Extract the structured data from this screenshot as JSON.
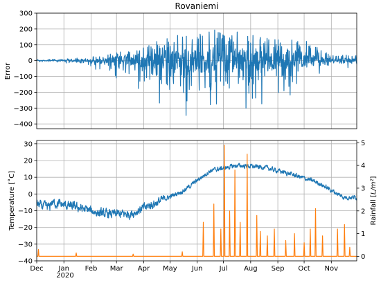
{
  "chart_data": [
    {
      "type": "line",
      "title": "Rovaniemi",
      "ylabel": "Error",
      "ylim": [
        -430,
        300
      ],
      "yticks": [
        "300",
        "200",
        "100",
        "0",
        "−100",
        "−200",
        "−300",
        "−400"
      ],
      "ytick_values": [
        300,
        200,
        100,
        0,
        -100,
        -200,
        -300,
        -400
      ],
      "grid": true,
      "series": [
        {
          "color": "#1f77b4",
          "envelope": [
            {
              "month": "Dec",
              "max": 8,
              "min": -8
            },
            {
              "month": "Jan",
              "max": 12,
              "min": -12
            },
            {
              "month": "Feb",
              "max": 30,
              "min": -40
            },
            {
              "month": "Mar",
              "max": 70,
              "min": -120
            },
            {
              "month": "Apr",
              "max": 110,
              "min": -270
            },
            {
              "month": "May",
              "max": 200,
              "min": -320
            },
            {
              "month": "Jun",
              "max": 225,
              "min": -410
            },
            {
              "month": "Jul",
              "max": 265,
              "min": -360
            },
            {
              "month": "Aug",
              "max": 210,
              "min": -310
            },
            {
              "month": "Sep",
              "max": 175,
              "min": -250
            },
            {
              "month": "Oct",
              "max": 170,
              "min": -190
            },
            {
              "month": "Nov",
              "max": 45,
              "min": -45
            }
          ]
        }
      ]
    },
    {
      "type": "line",
      "ylabel": "Temperature [˚C]",
      "y2label": "Rainfall [L/m²]",
      "ylim": [
        -40,
        32
      ],
      "y2lim": [
        -0.2,
        5.1
      ],
      "yticks": [
        "30",
        "20",
        "10",
        "0",
        "−10",
        "−20",
        "−30",
        "−40"
      ],
      "ytick_values": [
        30,
        20,
        10,
        0,
        -10,
        -20,
        -30,
        -40
      ],
      "y2ticks": [
        "5",
        "4",
        "3",
        "2",
        "1",
        "0"
      ],
      "y2tick_values": [
        5,
        4,
        3,
        2,
        1,
        0
      ],
      "xticks": [
        "Dec",
        "Jan",
        "Feb",
        "Mar",
        "Apr",
        "May",
        "Jun",
        "Jul",
        "Aug",
        "Sep",
        "Oct",
        "Nov"
      ],
      "xsublabel": "2020",
      "grid": true,
      "series": [
        {
          "axis": "left",
          "color": "#1f77b4",
          "monthly_mean": [
            {
              "month": "Dec",
              "value": -5
            },
            {
              "month": "Jan",
              "value": -8
            },
            {
              "month": "Feb",
              "value": -12
            },
            {
              "month": "Mar",
              "value": -12
            },
            {
              "month": "Apr",
              "value": -5
            },
            {
              "month": "May",
              "value": 2
            },
            {
              "month": "Jun",
              "value": 14
            },
            {
              "month": "Jul",
              "value": 17
            },
            {
              "month": "Aug",
              "value": 16
            },
            {
              "month": "Sep",
              "value": 12
            },
            {
              "month": "Oct",
              "value": 7
            },
            {
              "month": "Nov",
              "value": -2
            }
          ]
        },
        {
          "axis": "right",
          "color": "#ff7f0e",
          "peaks": [
            {
              "date": "2019-12-03",
              "value": 0.3
            },
            {
              "date": "2020-01-15",
              "value": 0.15
            },
            {
              "date": "2020-03-20",
              "value": 0.1
            },
            {
              "date": "2020-05-15",
              "value": 0.2
            },
            {
              "date": "2020-06-08",
              "value": 1.5
            },
            {
              "date": "2020-06-20",
              "value": 2.3
            },
            {
              "date": "2020-06-28",
              "value": 1.2
            },
            {
              "date": "2020-07-02",
              "value": 4.9
            },
            {
              "date": "2020-07-08",
              "value": 2.0
            },
            {
              "date": "2020-07-14",
              "value": 3.8
            },
            {
              "date": "2020-07-20",
              "value": 1.5
            },
            {
              "date": "2020-07-28",
              "value": 4.5
            },
            {
              "date": "2020-08-08",
              "value": 1.8
            },
            {
              "date": "2020-08-12",
              "value": 1.1
            },
            {
              "date": "2020-08-20",
              "value": 0.9
            },
            {
              "date": "2020-08-28",
              "value": 1.2
            },
            {
              "date": "2020-09-10",
              "value": 0.7
            },
            {
              "date": "2020-09-20",
              "value": 1.0
            },
            {
              "date": "2020-10-01",
              "value": 0.6
            },
            {
              "date": "2020-10-08",
              "value": 1.2
            },
            {
              "date": "2020-10-14",
              "value": 2.1
            },
            {
              "date": "2020-10-22",
              "value": 0.9
            },
            {
              "date": "2020-11-08",
              "value": 1.2
            },
            {
              "date": "2020-11-16",
              "value": 1.4
            },
            {
              "date": "2020-11-22",
              "value": 0.4
            }
          ]
        }
      ]
    }
  ]
}
